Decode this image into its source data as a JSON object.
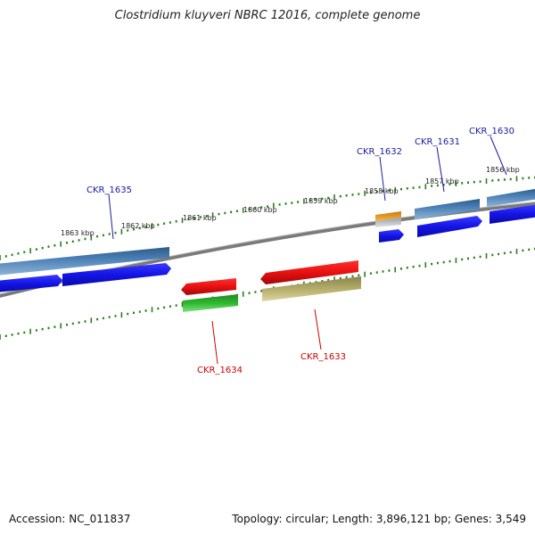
{
  "title": "Clostridium kluyveri NBRC 12016, complete genome",
  "footer": {
    "accession": "Accession: NC_011837",
    "summary": "Topology: circular; Length: 3,896,121 bp; Genes: 3,549"
  },
  "colors": {
    "plus_gene_label": "#1a1aa0",
    "minus_gene_label": "#cc0000",
    "tick": "#2e7d1e",
    "backbone": "#7a7a7a",
    "cds_blue": "#1414e6",
    "gene_steelblue": "#4a7fb5",
    "cds_red": "#e81010",
    "gene_green": "#2fb82f",
    "gene_olive": "#b5ad6a",
    "gene_orange": "#f0a020",
    "gene_lightgray": "#c0c6cc"
  },
  "tick_labels": [
    "1863 kbp",
    "1862 kbp",
    "1861 kbp",
    "1860 kbp",
    "1859 kbp",
    "1858 kbp",
    "1857 kbp",
    "1856 kbp"
  ],
  "genes": [
    {
      "name": "CKR_1635",
      "strand": "+"
    },
    {
      "name": "CKR_1632",
      "strand": "+"
    },
    {
      "name": "CKR_1631",
      "strand": "+"
    },
    {
      "name": "CKR_1630",
      "strand": "+"
    },
    {
      "name": "CKR_1634",
      "strand": "-"
    },
    {
      "name": "CKR_1633",
      "strand": "-"
    }
  ]
}
